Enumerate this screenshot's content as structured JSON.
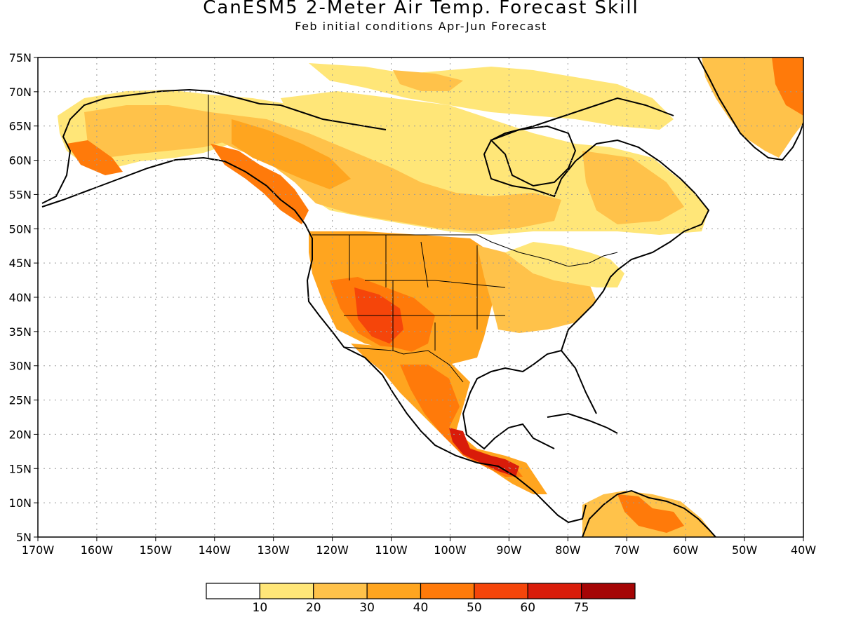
{
  "title": "CanESM5 2-Meter Air Temp. Forecast Skill",
  "subtitle": "Feb initial conditions  Apr-Jun Forecast",
  "axes": {
    "lat_labels": [
      "75N",
      "70N",
      "65N",
      "60N",
      "55N",
      "50N",
      "45N",
      "40N",
      "35N",
      "30N",
      "25N",
      "20N",
      "15N",
      "10N",
      "5N"
    ],
    "lon_labels": [
      "170W",
      "160W",
      "150W",
      "140W",
      "130W",
      "120W",
      "110W",
      "100W",
      "90W",
      "80W",
      "70W",
      "60W",
      "50W",
      "40W"
    ]
  },
  "colorbar": {
    "colors": [
      "#ffffff",
      "#ffe678",
      "#ffc24a",
      "#ffa51f",
      "#ff7a0a",
      "#f5450a",
      "#d91c0a",
      "#a50505"
    ],
    "labels": [
      "10",
      "20",
      "30",
      "40",
      "50",
      "60",
      "75"
    ]
  }
}
